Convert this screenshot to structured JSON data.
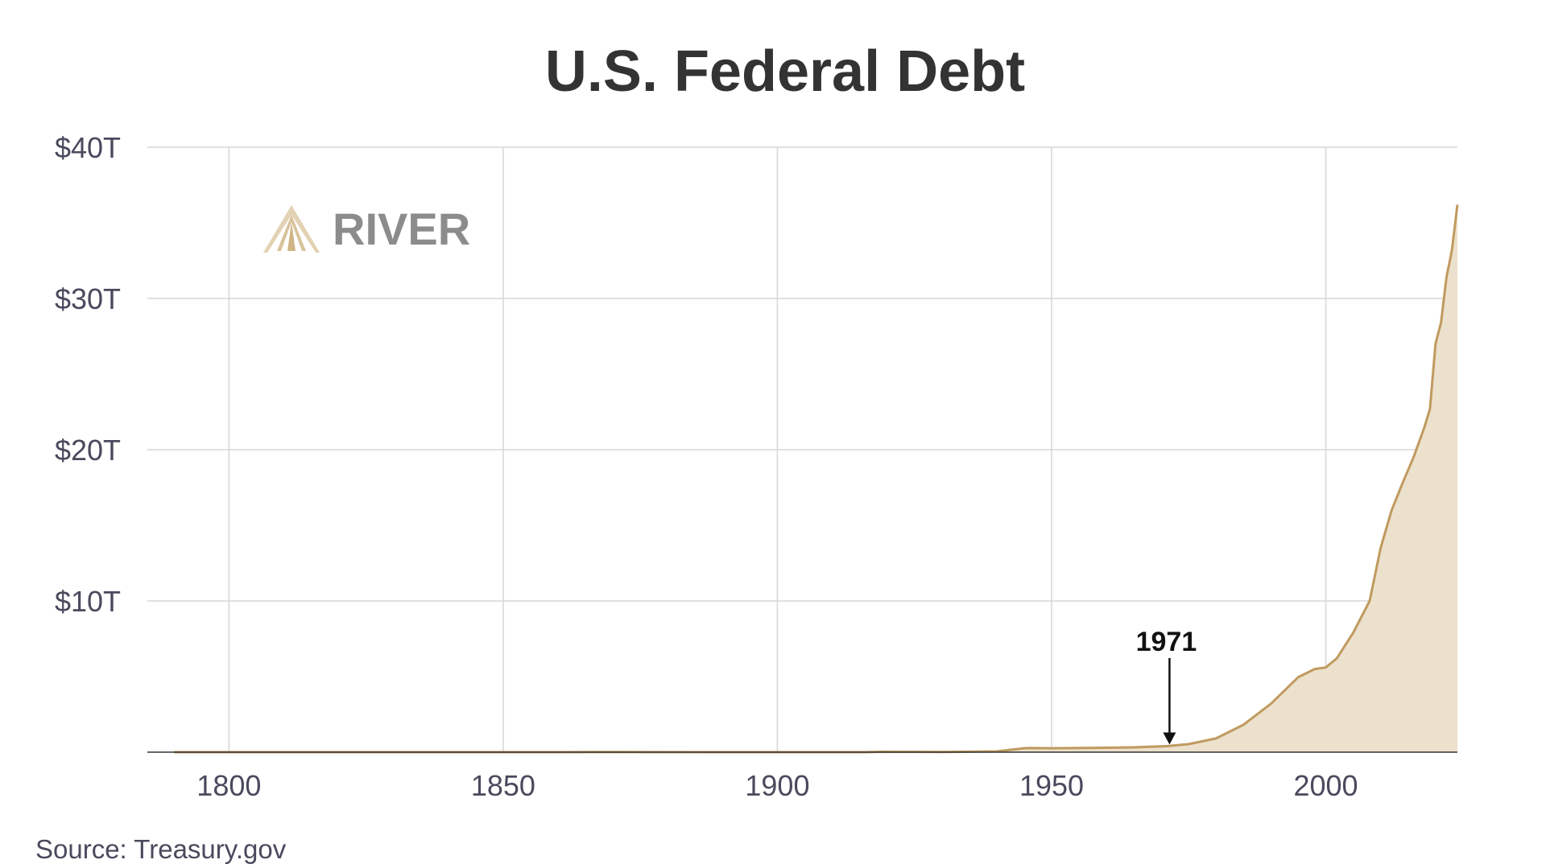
{
  "chart_data": {
    "type": "area",
    "title": "U.S. Federal Debt",
    "xlabel": "",
    "ylabel": "",
    "xlim": [
      1786,
      2024
    ],
    "ylim": [
      0,
      40
    ],
    "x_ticks": [
      1800,
      1850,
      1900,
      1950,
      2000
    ],
    "x_tick_labels": [
      "1800",
      "1850",
      "1900",
      "1950",
      "2000"
    ],
    "y_ticks": [
      10,
      20,
      30,
      40
    ],
    "y_tick_labels": [
      "$10T",
      "$20T",
      "$30T",
      "$40T"
    ],
    "grid": true,
    "colors": {
      "line": "#c09a5f",
      "fill": "#ece1cc",
      "grid": "#d6d6d6"
    },
    "series": [
      {
        "x": [
          1790,
          1800,
          1850,
          1860,
          1866,
          1900,
          1916,
          1919,
          1930,
          1940,
          1945,
          1946,
          1950,
          1960,
          1965,
          1971,
          1975,
          1980,
          1985,
          1990,
          1995,
          1998,
          2000,
          2002,
          2005,
          2008,
          2010,
          2012,
          2014,
          2016,
          2018,
          2019,
          2020,
          2021,
          2022,
          2023,
          2024
        ],
        "y": [
          8e-05,
          8e-05,
          6e-05,
          6e-05,
          0.0027,
          0.0012,
          0.0012,
          0.027,
          0.016,
          0.051,
          0.26,
          0.27,
          0.26,
          0.29,
          0.32,
          0.4,
          0.53,
          0.91,
          1.82,
          3.2,
          4.97,
          5.5,
          5.6,
          6.2,
          7.9,
          10.0,
          13.5,
          16.0,
          17.8,
          19.5,
          21.5,
          22.7,
          27.0,
          28.4,
          31.4,
          33.2,
          36.2
        ]
      }
    ],
    "annotations": [
      {
        "text": "1971",
        "x": 1971.5,
        "arrow_to_y": 0.45
      }
    ],
    "source": "Source: Treasury.gov",
    "logo_text": "RIVER"
  }
}
